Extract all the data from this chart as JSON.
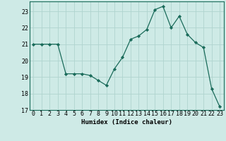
{
  "x": [
    0,
    1,
    2,
    3,
    4,
    5,
    6,
    7,
    8,
    9,
    10,
    11,
    12,
    13,
    14,
    15,
    16,
    17,
    18,
    19,
    20,
    21,
    22,
    23
  ],
  "y": [
    21.0,
    21.0,
    21.0,
    21.0,
    19.2,
    19.2,
    19.2,
    19.1,
    18.8,
    18.5,
    19.5,
    20.2,
    21.3,
    21.5,
    21.9,
    23.1,
    23.3,
    22.0,
    22.7,
    21.6,
    21.1,
    20.8,
    18.3,
    17.2
  ],
  "line_color": "#1a6b5a",
  "marker": "D",
  "marker_size": 2.2,
  "bg_color": "#ceeae6",
  "grid_color": "#b0d4cf",
  "xlabel": "Humidex (Indice chaleur)",
  "ylim": [
    17,
    23.6
  ],
  "yticks": [
    17,
    18,
    19,
    20,
    21,
    22,
    23
  ],
  "xticks": [
    0,
    1,
    2,
    3,
    4,
    5,
    6,
    7,
    8,
    9,
    10,
    11,
    12,
    13,
    14,
    15,
    16,
    17,
    18,
    19,
    20,
    21,
    22,
    23
  ],
  "label_fontsize": 6.5,
  "tick_fontsize": 6.0
}
